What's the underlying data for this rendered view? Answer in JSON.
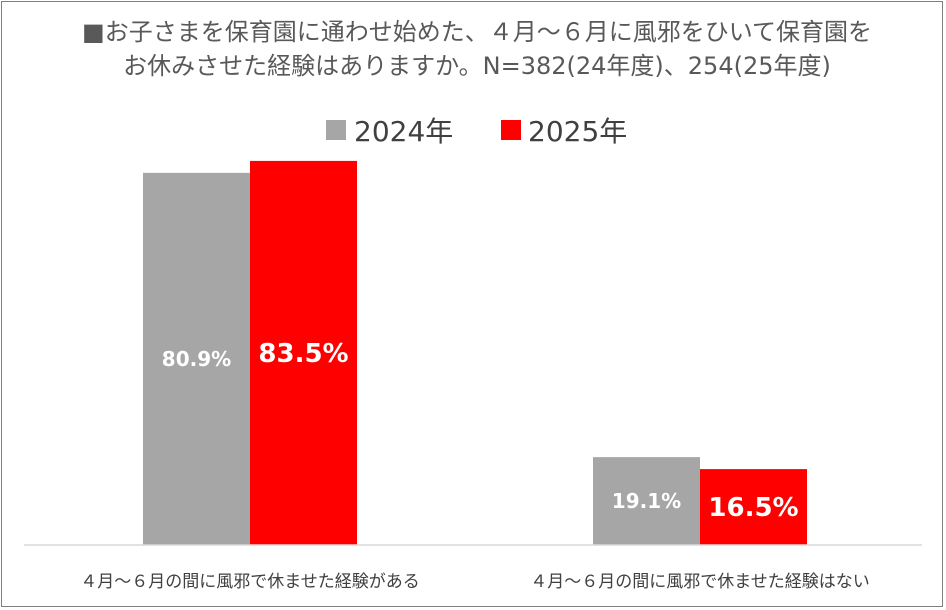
{
  "chart_data": {
    "type": "bar",
    "title_line1": "■お子さまを保育園に通わせ始めた、４月～６月に風邪をひいて保育園を",
    "title_line2": "お休みさせた経験はありますか。N=382(24年度)、254(25年度)",
    "categories": [
      "４月～６月の間に風邪で休ませた経験がある",
      "４月～６月の間に風邪で休ませた経験はない"
    ],
    "series": [
      {
        "name": "2024年",
        "values": [
          80.9,
          19.1
        ],
        "labels": [
          "80.9%",
          "19.1%"
        ],
        "color": "#a6a6a6"
      },
      {
        "name": "2025年",
        "values": [
          83.5,
          16.5
        ],
        "labels": [
          "83.5%",
          "16.5%"
        ],
        "color": "#ff0000"
      }
    ],
    "ylim": [
      0,
      90
    ],
    "grid": false,
    "legend_position": "top-center"
  }
}
